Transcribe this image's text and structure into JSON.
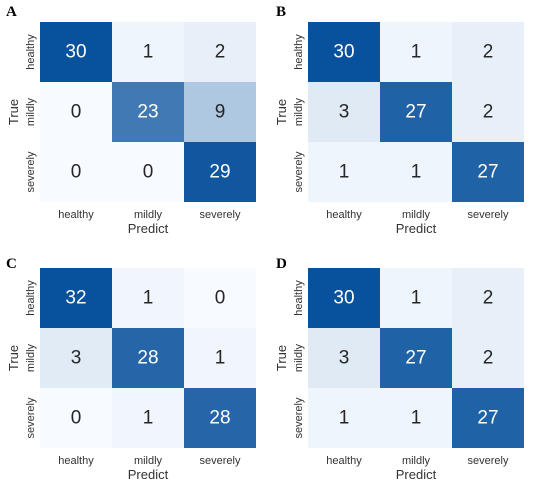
{
  "chart_data": [
    {
      "type": "heatmap",
      "panel": "A",
      "categories": [
        "healthy",
        "mildly",
        "severely"
      ],
      "xlabel": "Predict",
      "ylabel": "True",
      "values": [
        [
          30,
          1,
          2
        ],
        [
          0,
          23,
          9
        ],
        [
          0,
          0,
          29
        ]
      ]
    },
    {
      "type": "heatmap",
      "panel": "B",
      "categories": [
        "healthy",
        "mildly",
        "severely"
      ],
      "xlabel": "Predict",
      "ylabel": "True",
      "values": [
        [
          30,
          1,
          2
        ],
        [
          3,
          27,
          2
        ],
        [
          1,
          1,
          27
        ]
      ]
    },
    {
      "type": "heatmap",
      "panel": "C",
      "categories": [
        "healthy",
        "mildly",
        "severely"
      ],
      "xlabel": "Predict",
      "ylabel": "True",
      "values": [
        [
          32,
          1,
          0
        ],
        [
          3,
          28,
          1
        ],
        [
          0,
          1,
          28
        ]
      ]
    },
    {
      "type": "heatmap",
      "panel": "D",
      "categories": [
        "healthy",
        "mildly",
        "severely"
      ],
      "xlabel": "Predict",
      "ylabel": "True",
      "values": [
        [
          30,
          1,
          2
        ],
        [
          3,
          27,
          2
        ],
        [
          1,
          1,
          27
        ]
      ]
    }
  ],
  "colors": {
    "low": "#f7fbff",
    "high": "#08519c",
    "text_dark": "#262626",
    "text_light": "#ffffff"
  }
}
